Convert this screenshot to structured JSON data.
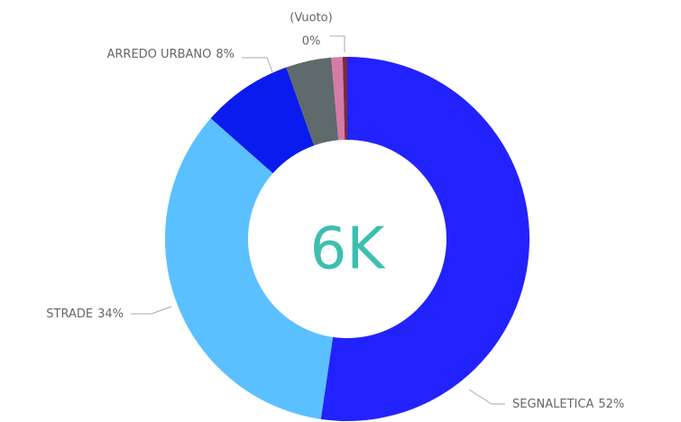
{
  "chart_data": {
    "type": "pie",
    "donut": true,
    "center_label": "6K",
    "categories": [
      "SEGNALETICA",
      "STRADE",
      "ARREDO URBANO",
      null,
      null,
      "(Vuoto)"
    ],
    "values": [
      52,
      34,
      8,
      4,
      1,
      0.4
    ],
    "value_labels": [
      "52%",
      "34%",
      "8%",
      null,
      null,
      "0%"
    ],
    "colors": [
      "#2222ff",
      "#5bc0ff",
      "#0a1ced",
      "#5e6a6c",
      "#d67aa8",
      "#7a2a3a"
    ]
  }
}
